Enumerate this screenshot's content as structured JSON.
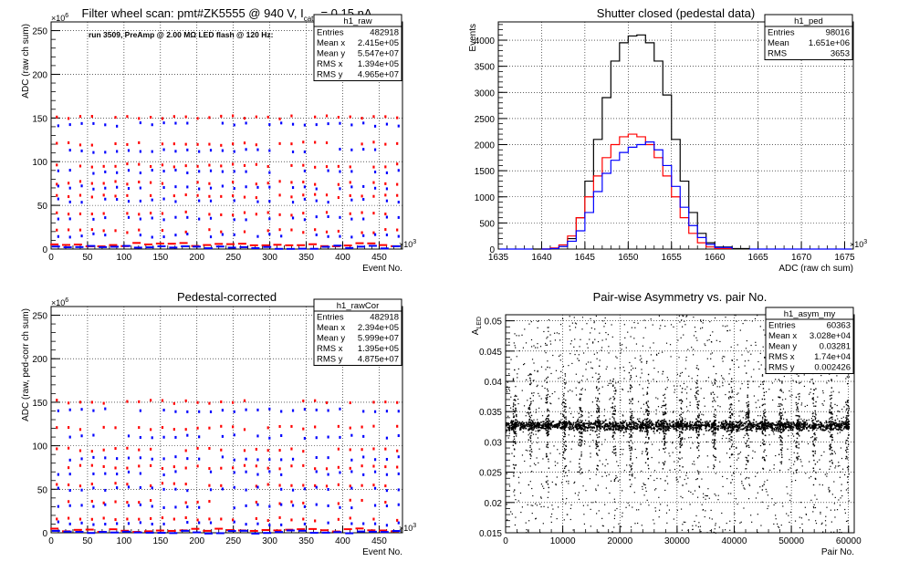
{
  "panels": [
    {
      "id": "raw",
      "title": "Filter wheel scan: pmt#ZK5555 @   940 V, I",
      "title_sub": "cath",
      "title_tail": " = 0.15 nA",
      "ylabel": "ADC (raw ch sum)",
      "xlabel": "Event No.",
      "x_exp": "×10",
      "x_exp_pow": "3",
      "y_exp": "×10",
      "y_exp_pow": "6",
      "xticks": [
        "0",
        "50",
        "100",
        "150",
        "200",
        "250",
        "300",
        "350",
        "400",
        "450"
      ],
      "yticks": [
        "0",
        "50",
        "100",
        "150",
        "200",
        "250"
      ],
      "note": "run 3509, PreAmp @ 2.00 MΩ LED flash @  120 Hz:",
      "stats": {
        "name": "h1_raw",
        "rows": [
          [
            "Entries",
            "482918"
          ],
          [
            "Mean x",
            "2.415e+05"
          ],
          [
            "Mean y",
            "5.547e+07"
          ],
          [
            "RMS x",
            "1.394e+05"
          ],
          [
            "RMS y",
            "4.965e+07"
          ]
        ]
      }
    },
    {
      "id": "ped",
      "title": "Shutter closed (pedestal data)",
      "ylabel": "Events",
      "xlabel": "ADC (raw ch sum)",
      "x_exp": "×10",
      "x_exp_pow": "3",
      "xticks": [
        "1635",
        "1640",
        "1645",
        "1650",
        "1655",
        "1660",
        "1665",
        "1670",
        "1675"
      ],
      "yticks": [
        "0",
        "500",
        "1000",
        "1500",
        "2000",
        "2500",
        "3000",
        "3500",
        "4000"
      ],
      "stats": {
        "name": "h1_ped",
        "rows": [
          [
            "Entries",
            "98016"
          ],
          [
            "Mean",
            "1.651e+06"
          ],
          [
            "RMS",
            "3653"
          ]
        ]
      }
    },
    {
      "id": "rawcor",
      "title": "Pedestal-corrected",
      "ylabel": "ADC (raw, ped-corr ch sum)",
      "xlabel": "Event No.",
      "x_exp": "×10",
      "x_exp_pow": "3",
      "y_exp": "×10",
      "y_exp_pow": "6",
      "xticks": [
        "0",
        "50",
        "100",
        "150",
        "200",
        "250",
        "300",
        "350",
        "400",
        "450"
      ],
      "yticks": [
        "0",
        "50",
        "100",
        "150",
        "200",
        "250"
      ],
      "stats": {
        "name": "h1_rawCor",
        "rows": [
          [
            "Entries",
            "482918"
          ],
          [
            "Mean x",
            "2.394e+05"
          ],
          [
            "Mean y",
            "5.999e+07"
          ],
          [
            "RMS x",
            "1.395e+05"
          ],
          [
            "RMS y",
            "4.875e+07"
          ]
        ]
      }
    },
    {
      "id": "asym",
      "title": "Pair-wise Asymmetry vs. pair No.",
      "ylabel": "A",
      "ylabel_sub": "LED",
      "xlabel": "Pair No.",
      "xticks": [
        "0",
        "10000",
        "20000",
        "30000",
        "40000",
        "50000",
        "60000"
      ],
      "yticks": [
        "0.015",
        "0.02",
        "0.025",
        "0.03",
        "0.035",
        "0.04",
        "0.045",
        "0.05"
      ],
      "stats": {
        "name": "h1_asym_my",
        "rows": [
          [
            "Entries",
            "60363"
          ],
          [
            "Mean x",
            "3.028e+04"
          ],
          [
            "Mean y",
            "0.03281"
          ],
          [
            "RMS x",
            "1.74e+04"
          ],
          [
            "RMS y",
            "0.002426"
          ]
        ]
      }
    }
  ],
  "chart_data": [
    {
      "type": "scatter",
      "panel": "raw",
      "x_range": [
        0,
        482
      ],
      "ylim": [
        0,
        260
      ],
      "grid": true,
      "series": [
        {
          "color": "#ff0000",
          "levels": [
            150,
            120,
            95,
            75,
            60,
            40,
            20,
            5
          ]
        },
        {
          "color": "#0000ff",
          "levels": [
            142,
            112,
            88,
            70,
            55,
            35,
            15,
            2
          ]
        }
      ]
    },
    {
      "type": "line",
      "panel": "ped",
      "x_range": [
        1635,
        1676
      ],
      "ylim": [
        0,
        4350
      ],
      "grid": true,
      "series": [
        {
          "color": "#000000",
          "x": [
            1639,
            1641,
            1642,
            1643,
            1644,
            1645,
            1646,
            1647,
            1648,
            1649,
            1650,
            1651,
            1652,
            1653,
            1654,
            1655,
            1656,
            1657,
            1658,
            1659,
            1660,
            1662,
            1664
          ],
          "y": [
            0,
            10,
            50,
            200,
            600,
            1300,
            2100,
            2900,
            3600,
            3950,
            4080,
            4100,
            3950,
            3600,
            2950,
            2100,
            1300,
            700,
            300,
            120,
            40,
            10,
            0
          ]
        },
        {
          "color": "#ff0000",
          "x": [
            1640,
            1641,
            1642,
            1643,
            1644,
            1645,
            1646,
            1647,
            1648,
            1649,
            1650,
            1651,
            1652,
            1653,
            1654,
            1655,
            1656,
            1657,
            1658,
            1659,
            1660,
            1662
          ],
          "y": [
            0,
            20,
            80,
            250,
            600,
            1000,
            1400,
            1750,
            2000,
            2150,
            2200,
            2150,
            2000,
            1750,
            1400,
            1000,
            600,
            300,
            120,
            40,
            10,
            0
          ]
        },
        {
          "color": "#0000ff",
          "x": [
            1640,
            1641,
            1642,
            1643,
            1644,
            1645,
            1646,
            1647,
            1648,
            1649,
            1650,
            1651,
            1652,
            1653,
            1654,
            1655,
            1656,
            1657,
            1658,
            1659,
            1660,
            1662
          ],
          "y": [
            0,
            10,
            50,
            150,
            350,
            700,
            1100,
            1450,
            1700,
            1850,
            1950,
            2000,
            2050,
            1900,
            1600,
            1200,
            800,
            450,
            220,
            90,
            30,
            0
          ]
        }
      ]
    },
    {
      "type": "scatter",
      "panel": "rawcor",
      "x_range": [
        0,
        482
      ],
      "ylim": [
        0,
        260
      ],
      "grid": true,
      "series": [
        {
          "color": "#ff0000",
          "levels": [
            150,
            120,
            95,
            75,
            55,
            35,
            15,
            3
          ]
        },
        {
          "color": "#0000ff",
          "levels": [
            140,
            110,
            85,
            68,
            50,
            30,
            10,
            1
          ]
        }
      ]
    },
    {
      "type": "scatter",
      "panel": "asym",
      "x_range": [
        0,
        61000
      ],
      "ylim": [
        0.015,
        0.051
      ],
      "grid": true,
      "series": [
        {
          "color": "#000000",
          "band_center": 0.0328,
          "band_halfwidth": 0.0008,
          "spike_x": [
            1500,
            4200,
            7200,
            10200,
            13000,
            16000,
            18900,
            21800,
            24700,
            27700,
            30600,
            33500,
            36400,
            39300,
            42200,
            45100,
            48000,
            51000,
            53900,
            56800,
            59700
          ]
        }
      ]
    }
  ]
}
